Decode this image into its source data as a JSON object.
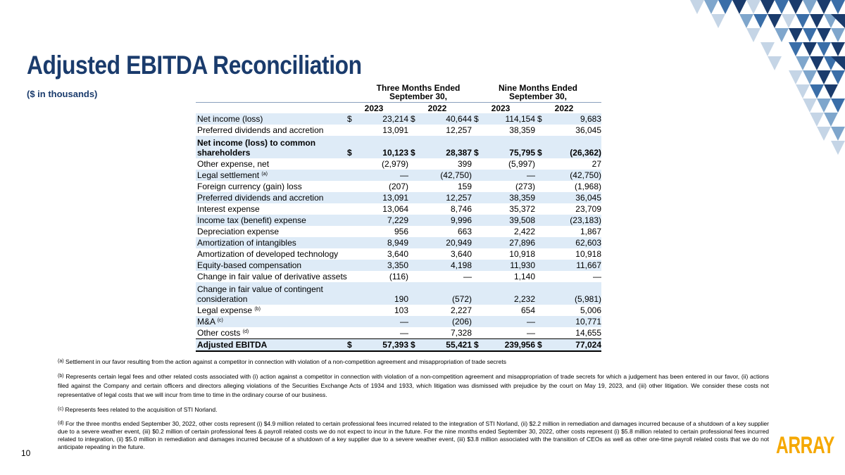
{
  "title": "Adjusted EBITDA Reconciliation",
  "subtitle": "($ in thousands)",
  "page_number": "10",
  "logo_text": "ARRAY",
  "decoration": {
    "name": "triangle-pattern",
    "colors": [
      "#1a3b6c",
      "#3a6ea8",
      "#7fa6cc",
      "#c5d5e6"
    ]
  },
  "table": {
    "group_headers": {
      "three_months": [
        "Three Months Ended",
        "September 30,"
      ],
      "nine_months": [
        "Nine Months Ended",
        "September 30,"
      ]
    },
    "years": [
      "2023",
      "2022",
      "2023",
      "2022"
    ],
    "currency_symbol": "$",
    "rows": [
      {
        "label": "Net income (loss)",
        "sup": "",
        "values": [
          "23,214",
          "40,644",
          "114,154",
          "9,683"
        ]
      },
      {
        "label": "Preferred dividends and accretion",
        "sup": "",
        "values": [
          "13,091",
          "12,257",
          "38,359",
          "36,045"
        ]
      },
      {
        "label": "Net income (loss) to common shareholders",
        "sup": "",
        "values": [
          "10,123",
          "28,387",
          "75,795",
          "(26,362)"
        ]
      },
      {
        "label": "Other expense, net",
        "sup": "",
        "values": [
          "(2,979)",
          "399",
          "(5,997)",
          "27"
        ]
      },
      {
        "label": "Legal settlement",
        "sup": "(a)",
        "values": [
          "—",
          "(42,750)",
          "—",
          "(42,750)"
        ]
      },
      {
        "label": "Foreign currency (gain) loss",
        "sup": "",
        "values": [
          "(207)",
          "159",
          "(273)",
          "(1,968)"
        ]
      },
      {
        "label": "Preferred dividends and accretion",
        "sup": "",
        "values": [
          "13,091",
          "12,257",
          "38,359",
          "36,045"
        ]
      },
      {
        "label": "Interest expense",
        "sup": "",
        "values": [
          "13,064",
          "8,746",
          "35,372",
          "23,709"
        ]
      },
      {
        "label": "Income tax (benefit) expense",
        "sup": "",
        "values": [
          "7,229",
          "9,996",
          "39,508",
          "(23,183)"
        ]
      },
      {
        "label": "Depreciation expense",
        "sup": "",
        "values": [
          "956",
          "663",
          "2,422",
          "1,867"
        ]
      },
      {
        "label": "Amortization of intangibles",
        "sup": "",
        "values": [
          "8,949",
          "20,949",
          "27,896",
          "62,603"
        ]
      },
      {
        "label": "Amortization of developed technology",
        "sup": "",
        "values": [
          "3,640",
          "3,640",
          "10,918",
          "10,918"
        ]
      },
      {
        "label": "Equity-based compensation",
        "sup": "",
        "values": [
          "3,350",
          "4,198",
          "11,930",
          "11,667"
        ]
      },
      {
        "label": "Change in fair value of derivative assets",
        "sup": "",
        "values": [
          "(116)",
          "—",
          "1,140",
          "—"
        ]
      },
      {
        "label": "Change in fair value of contingent consideration",
        "sup": "",
        "values": [
          "190",
          "(572)",
          "2,232",
          "(5,981)"
        ]
      },
      {
        "label": "Legal expense",
        "sup": "(b)",
        "values": [
          "103",
          "2,227",
          "654",
          "5,006"
        ]
      },
      {
        "label": "M&A",
        "sup": "(c)",
        "values": [
          "—",
          "(206)",
          "—",
          "10,771"
        ]
      },
      {
        "label": "Other costs",
        "sup": "(d)",
        "values": [
          "—",
          "7,328",
          "—",
          "14,655"
        ]
      },
      {
        "label": "Adjusted EBITDA",
        "sup": "",
        "values": [
          "57,393",
          "55,421",
          "239,956",
          "77,024"
        ]
      }
    ]
  },
  "footnotes": [
    {
      "mark": "(a)",
      "text": "Settlement in our favor resulting from the action against a competitor in connection with violation of a non-competition agreement and misappropriation of trade secrets"
    },
    {
      "mark": "(b)",
      "text": "Represents certain legal fees and other related costs associated with (i) action against a competitor in connection with violation of a non-competition agreement and misappropriation of trade secrets for which a judgement has been entered in our favor, (ii) actions filed against the Company and certain officers and directors alleging violations of the Securities Exchange Acts of 1934 and 1933, which litigation was dismissed with prejudice by the court on May 19, 2023, and (iii) other litigation. We consider these costs not representative of legal costs that we will incur from time to time in the ordinary course of our business."
    },
    {
      "mark": "(c)",
      "text": "Represents fees related to the acquisition of STI Norland."
    },
    {
      "mark": "(d)",
      "text": "For the three months ended September 30, 2022, other costs represent (i) $4.9 million related to certain professional fees incurred related to the integration of STI Norland, (ii) $2.2 million in remediation and damages incurred because of a shutdown of a key supplier due to a severe weather event, (iii) $0.2 million of certain professional fees & payroll related costs we do not expect to incur in the future. For the nine months ended September 30, 2022, other costs represent (i) $5.8 million related to certain professional fees incurred related to integration, (ii) $5.0 million in remediation and damages incurred because of a shutdown of a key supplier due to a severe weather event, (iii) $3.8 million associated with the transition of CEOs as well as other one-time payroll related costs that we do not anticipate repeating in the future."
    }
  ]
}
